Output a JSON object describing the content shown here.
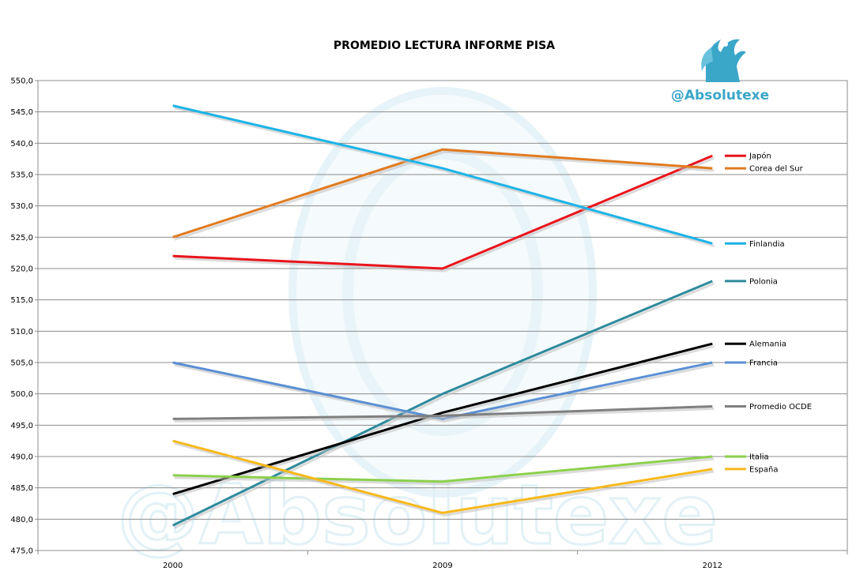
{
  "chart_data": {
    "type": "line",
    "title": "PROMEDIO LECTURA INFORME PISA",
    "xlabel": "",
    "ylabel": "",
    "categories": [
      "2000",
      "2009",
      "2012"
    ],
    "ylim": [
      475,
      550
    ],
    "ytick_step": 5,
    "ytick_labels": [
      "475,0",
      "480,0",
      "485,0",
      "490,0",
      "495,0",
      "500,0",
      "505,0",
      "510,0",
      "515,0",
      "520,0",
      "525,0",
      "530,0",
      "535,0",
      "540,0",
      "545,0",
      "550,0"
    ],
    "grid": "horizontal",
    "legend": "right, next to the end of each line",
    "series": [
      {
        "name": "Japón",
        "values": [
          522,
          520,
          538
        ],
        "color": "#e8141c"
      },
      {
        "name": "Corea del Sur",
        "values": [
          525,
          539,
          536
        ],
        "color": "#e07b20"
      },
      {
        "name": "Finlandia",
        "values": [
          546,
          536,
          524
        ],
        "color": "#1eb3e6"
      },
      {
        "name": "Polonia",
        "values": [
          479,
          500,
          518
        ],
        "color": "#2e8a9c"
      },
      {
        "name": "Alemania",
        "values": [
          484,
          497,
          508
        ],
        "color": "#000000"
      },
      {
        "name": "Francia",
        "values": [
          505,
          496,
          505
        ],
        "color": "#5b8fd4"
      },
      {
        "name": "Promedio OCDE",
        "values": [
          496,
          496.5,
          498
        ],
        "color": "#7f7f7f"
      },
      {
        "name": "Italia",
        "values": [
          487,
          486,
          490
        ],
        "color": "#8bd04c"
      },
      {
        "name": "España",
        "values": [
          492.5,
          481,
          488
        ],
        "color": "#f7b81b"
      }
    ]
  },
  "watermark": {
    "handle": "@Absolutexe",
    "logo_icon": "griffin-icon",
    "color": "#3aa6c8"
  }
}
